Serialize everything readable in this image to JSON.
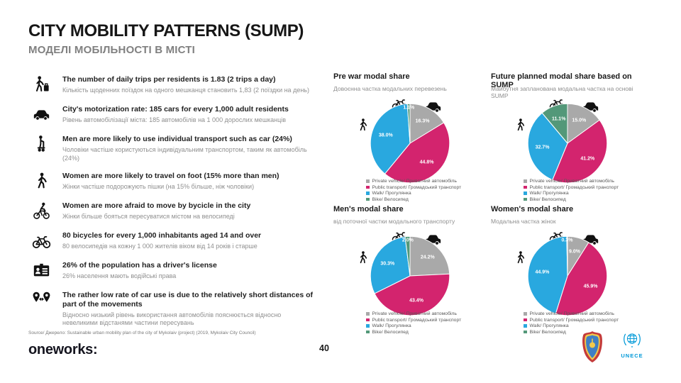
{
  "slide": {
    "title": "CITY MOBILITY PATTERNS (SUMP)",
    "subtitle": "МОДЕЛІ МОБІЛЬНОСТІ В МІСТІ",
    "source": "Source/ Джерело: Sustainable urban mobility plan of the city of Mykolaiv (project) (2019, Mykolaiv City Council)"
  },
  "facts": [
    {
      "icon": "traveler-icon",
      "en": "The number of daily trips per residents is 1.83 (2 trips a day)",
      "uk": "Кількість щоденних поїздок на одного мешканця становить 1,83 (2 поїздки на день)"
    },
    {
      "icon": "car-icon",
      "en": "City's motorization rate: 185 cars for every 1,000 adult residents",
      "uk": "Рівень автомобілізації міста: 185 автомобілів на 1 000 дорослих мешканців"
    },
    {
      "icon": "segway-icon",
      "en": "Men are more likely to use individual transport such as car (24%)",
      "uk": "Чоловіки частіше користуються індивідуальним транспортом, таким як автомобіль (24%)"
    },
    {
      "icon": "pedestrian-icon",
      "en": "Women are more likely to travel on foot (15% more than men)",
      "uk": "Жінки частіше подорожують пішки (на 15% більше, ніж чоловіки)"
    },
    {
      "icon": "cyclist-icon",
      "en": "Women are more afraid to move by bycicle in the city",
      "uk": "Жінки більше бояться пересуватися містом на велосипеді"
    },
    {
      "icon": "bike-icon",
      "en": "80 bicycles for every 1,000 inhabitants aged 14 and over",
      "uk": "80 велосипедів на кожну 1 000 жителів віком від 14 років і старше"
    },
    {
      "icon": "id-card-icon",
      "en": "26% of the population has a driver's license",
      "uk": "26% населення мають водійські права"
    },
    {
      "icon": "distance-icon",
      "en": "The rather low rate of car use is due to the relatively short distances of part of the movements",
      "uk": "Відносно низький рівень використання автомобілів пояснюється відносно невеликими відстанями частини пересувань"
    }
  ],
  "legend": [
    {
      "label": "Private vehicle/ Приватний автомобіль",
      "color": "#a9a9a9"
    },
    {
      "label": "Public transport/ Громадський транспорт",
      "color": "#d3246e"
    },
    {
      "label": "Walk/ Прогулянка",
      "color": "#29a8df"
    },
    {
      "label": "Bike/ Велосипед",
      "color": "#539879"
    }
  ],
  "chart_data": [
    {
      "type": "pie",
      "title": "Pre war modal share",
      "subtitle": "Довоєнна частка модальних перевезень",
      "categories": [
        "Private vehicle",
        "Public transport",
        "Walk",
        "Bike"
      ],
      "values": [
        16.3,
        44.8,
        38.0,
        1.1
      ],
      "labels": [
        "16.3%",
        "44.8%",
        "38.0%",
        "1.1%"
      ]
    },
    {
      "type": "pie",
      "title": "Future planned modal share based on SUMP",
      "subtitle": "Майбутня запланована модальна частка на основі SUMP",
      "categories": [
        "Private vehicle",
        "Public transport",
        "Walk",
        "Bike"
      ],
      "values": [
        15.0,
        41.2,
        32.7,
        11.1
      ],
      "labels": [
        "15.0%",
        "41.2%",
        "32.7%",
        "11.1%"
      ]
    },
    {
      "type": "pie",
      "title": "Men's modal share",
      "subtitle": "від поточної частки модального транспорту",
      "categories": [
        "Private vehicle",
        "Public transport",
        "Walk",
        "Bike"
      ],
      "values": [
        24.2,
        43.4,
        30.3,
        2.0
      ],
      "labels": [
        "24.2%",
        "43.4%",
        "30.3%",
        "2.0%"
      ]
    },
    {
      "type": "pie",
      "title": "Women's modal share",
      "subtitle": "Модальна частка жінок",
      "categories": [
        "Private vehicle",
        "Public transport",
        "Walk",
        "Bike"
      ],
      "values": [
        9.0,
        45.9,
        44.9,
        0.3
      ],
      "labels": [
        "9.0%",
        "45.9%",
        "44.9%",
        "0.3%"
      ]
    }
  ],
  "footer": {
    "brand": "oneworks:",
    "page_number": "40",
    "unece_label": "UNECE"
  }
}
